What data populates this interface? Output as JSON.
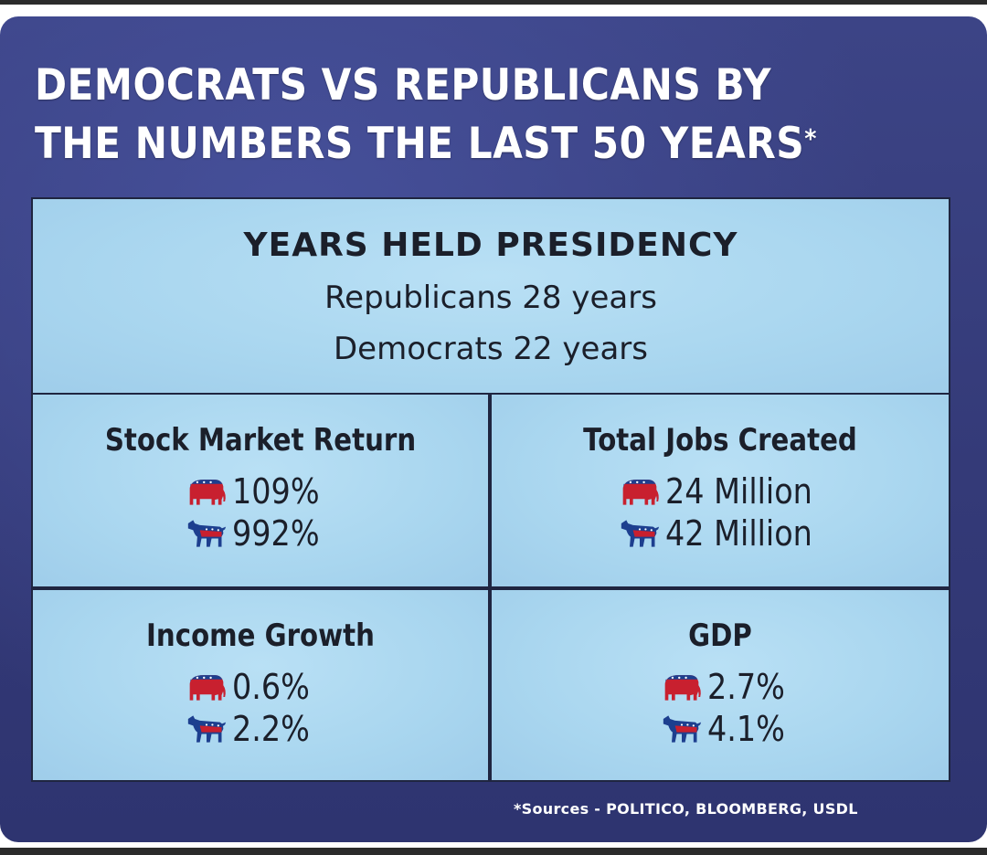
{
  "title_line1": "DEMOCRATS VS REPUBLICANS BY",
  "title_line2": "THE NUMBERS THE LAST 50 YEARS",
  "title_mark": "*",
  "presidency": {
    "heading": "YEARS HELD PRESIDENCY",
    "republicans": "Republicans 28 years",
    "democrats": "Democrats 22 years"
  },
  "stats": [
    {
      "title": "Stock Market Return",
      "republican": "109%",
      "democrat": "992%"
    },
    {
      "title": "Total Jobs Created",
      "republican": "24 Million",
      "democrat": "42 Million"
    },
    {
      "title": "Income Growth",
      "republican": "0.6%",
      "democrat": "2.2%"
    },
    {
      "title": "GDP",
      "republican": "2.7%",
      "democrat": "4.1%"
    }
  ],
  "sources": "*Sources - POLITICO, BLOOMBERG, USDL",
  "icons": {
    "republican": "elephant-icon",
    "democrat": "donkey-icon"
  },
  "colors": {
    "background": "#363c7c",
    "panel": "#aad7ef",
    "party_red": "#c8202f",
    "party_blue": "#1d3f8f"
  }
}
